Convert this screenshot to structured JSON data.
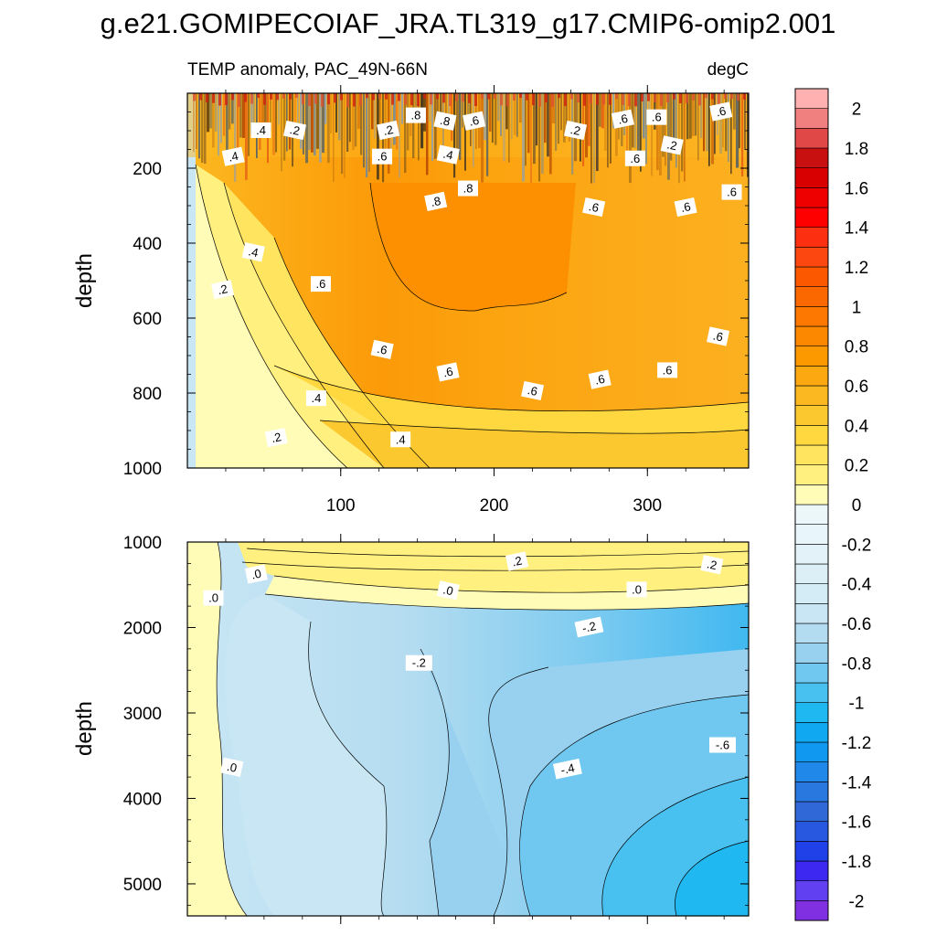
{
  "chart_data": {
    "type": "contour",
    "title": "g.e21.GOMIPECOIAF_JRA.TL319_g17.CMIP6-omip2.001",
    "subtitle_left": "TEMP anomaly, PAC_49N-66N",
    "subtitle_right": "degC",
    "variable": "TEMP anomaly",
    "units": "degC",
    "x_range": [
      0,
      366
    ],
    "x_ticks": [
      100,
      200,
      300
    ],
    "x_tick_labels": [
      "100",
      "200",
      "300"
    ],
    "panels": [
      {
        "name": "upper",
        "ylabel": "depth",
        "ylim": [
          0,
          1000
        ],
        "y_ticks": [
          200,
          400,
          600,
          800,
          1000
        ],
        "y_tick_labels": [
          "200",
          "400",
          "600",
          "800",
          "1000"
        ],
        "contour_labels": [
          {
            "text": ".4",
            "x": 30,
            "y": 170
          },
          {
            "text": ".4",
            "x": 48,
            "y": 100
          },
          {
            "text": ".2",
            "x": 70,
            "y": 100
          },
          {
            "text": ".2",
            "x": 131,
            "y": 100
          },
          {
            "text": ".8",
            "x": 149,
            "y": 60
          },
          {
            "text": ".8",
            "x": 168,
            "y": 75
          },
          {
            "text": ".6",
            "x": 187,
            "y": 75
          },
          {
            "text": ".6",
            "x": 127,
            "y": 170
          },
          {
            "text": ".4",
            "x": 170,
            "y": 165
          },
          {
            "text": ".8",
            "x": 162,
            "y": 290
          },
          {
            "text": ".8",
            "x": 183,
            "y": 255
          },
          {
            "text": ".2",
            "x": 253,
            "y": 100
          },
          {
            "text": ".6",
            "x": 284,
            "y": 70
          },
          {
            "text": ".6",
            "x": 306,
            "y": 65
          },
          {
            "text": ".2",
            "x": 316,
            "y": 140
          },
          {
            "text": ".6",
            "x": 348,
            "y": 50
          },
          {
            "text": ".6",
            "x": 292,
            "y": 175
          },
          {
            "text": ".6",
            "x": 265,
            "y": 305
          },
          {
            "text": ".6",
            "x": 325,
            "y": 305
          },
          {
            "text": ".6",
            "x": 355,
            "y": 265
          },
          {
            "text": ".4",
            "x": 43,
            "y": 425
          },
          {
            "text": ".2",
            "x": 23,
            "y": 525
          },
          {
            "text": ".6",
            "x": 87,
            "y": 510
          },
          {
            "text": ".6",
            "x": 127,
            "y": 685
          },
          {
            "text": ".6",
            "x": 170,
            "y": 745
          },
          {
            "text": ".4",
            "x": 84,
            "y": 815
          },
          {
            "text": ".6",
            "x": 225,
            "y": 795
          },
          {
            "text": ".6",
            "x": 269,
            "y": 765
          },
          {
            "text": ".6",
            "x": 313,
            "y": 740
          },
          {
            "text": ".6",
            "x": 346,
            "y": 650
          },
          {
            "text": ".2",
            "x": 58,
            "y": 920
          },
          {
            "text": ".4",
            "x": 139,
            "y": 925
          }
        ]
      },
      {
        "name": "lower",
        "ylabel": "depth",
        "ylim": [
          1000,
          5375
        ],
        "y_ticks": [
          1000,
          2000,
          3000,
          4000,
          5000
        ],
        "y_tick_labels": [
          "1000",
          "2000",
          "3000",
          "4000",
          "5000"
        ],
        "contour_labels": [
          {
            "text": ".0",
            "x": 45,
            "y": 1380
          },
          {
            "text": ".0",
            "x": 17,
            "y": 1660
          },
          {
            "text": ".0",
            "x": 170,
            "y": 1570
          },
          {
            "text": ".2",
            "x": 215,
            "y": 1230
          },
          {
            "text": ".0",
            "x": 293,
            "y": 1560
          },
          {
            "text": ".2",
            "x": 342,
            "y": 1270
          },
          {
            "text": "-.2",
            "x": 262,
            "y": 2000
          },
          {
            "text": "-.2",
            "x": 151,
            "y": 2420
          },
          {
            "text": ".0",
            "x": 29,
            "y": 3640
          },
          {
            "text": "-.4",
            "x": 248,
            "y": 3660
          },
          {
            "text": "-.6",
            "x": 349,
            "y": 3380
          }
        ]
      }
    ],
    "colorbar": {
      "levels": [
        -2.1,
        -2.0,
        -1.9,
        -1.8,
        -1.7,
        -1.6,
        -1.5,
        -1.4,
        -1.3,
        -1.2,
        -1.1,
        -1.0,
        -0.9,
        -0.8,
        -0.7,
        -0.6,
        -0.5,
        -0.4,
        -0.3,
        -0.2,
        -0.1,
        0.0,
        0.1,
        0.2,
        0.3,
        0.4,
        0.5,
        0.6,
        0.7,
        0.8,
        0.9,
        1.0,
        1.1,
        1.2,
        1.3,
        1.4,
        1.5,
        1.6,
        1.7,
        1.8,
        1.9,
        2.0,
        2.1
      ],
      "tick_values": [
        2,
        1.8,
        1.6,
        1.4,
        1.2,
        1,
        0.8,
        0.6,
        0.4,
        0.2,
        0,
        -0.2,
        -0.4,
        -0.6,
        -0.8,
        -1,
        -1.2,
        -1.4,
        -1.6,
        -1.8,
        -2
      ],
      "tick_labels": [
        "2",
        "1.8",
        "1.6",
        "1.4",
        "1.2",
        "1",
        "0.8",
        "0.6",
        "0.4",
        "0.2",
        "0",
        "-0.2",
        "-0.4",
        "-0.6",
        "-0.8",
        "-1",
        "-1.2",
        "-1.4",
        "-1.6",
        "-1.8",
        "-2"
      ],
      "colors_bottom_to_top": [
        "#8030e0",
        "#6040f0",
        "#3c28f0",
        "#2040e8",
        "#2858e0",
        "#3068d8",
        "#2878e0",
        "#2088e8",
        "#1098f0",
        "#10a8f0",
        "#20b8f0",
        "#48c0f0",
        "#70c8f0",
        "#98d0f0",
        "#b4dcf0",
        "#c8e6f4",
        "#d4ecf6",
        "#dceff6",
        "#e2f2f8",
        "#e8f5fa",
        "#ecf7fa",
        "#fffcb8",
        "#fff080",
        "#ffe460",
        "#ffd840",
        "#fcc830",
        "#fcb820",
        "#fca810",
        "#fc9800",
        "#fc8800",
        "#fc7800",
        "#fc6800",
        "#fc5800",
        "#fc4810",
        "#fc3010",
        "#ff0000",
        "#ee0000",
        "#d80000",
        "#c81010",
        "#e04848",
        "#f08080",
        "#ffb0b0"
      ]
    }
  }
}
